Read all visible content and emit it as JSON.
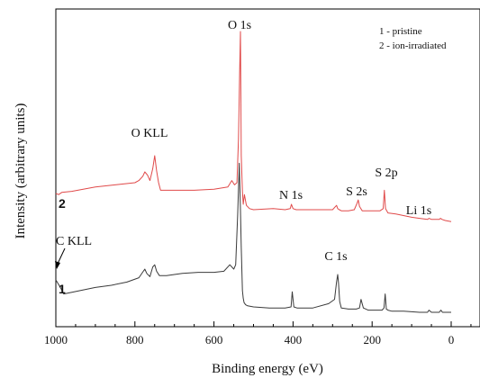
{
  "chart_data": {
    "type": "line",
    "title": "",
    "xlabel": "Binding energy (eV)",
    "ylabel": "Intensity (arbitrary units)",
    "x_reversed": true,
    "xlim": [
      1000,
      0
    ],
    "xticks": [
      1000,
      800,
      600,
      400,
      200,
      0
    ],
    "yticks_shown": false,
    "grid": false,
    "legend": {
      "placement": "top-right",
      "entries": [
        "1 - pristine",
        "2 - ion-irradiated"
      ]
    },
    "annotations": [
      "O 1s",
      "O KLL",
      "N 1s",
      "S 2s",
      "S 2p",
      "Li 1s",
      "C KLL",
      "C 1s"
    ],
    "series": [
      {
        "name": "1 - pristine",
        "curve_label": "1",
        "color": "#3a3a3a",
        "x": [
          1000,
          990,
          980,
          940,
          900,
          860,
          820,
          790,
          775,
          770,
          762,
          755,
          750,
          745,
          738,
          720,
          680,
          640,
          600,
          575,
          560,
          550,
          545,
          540,
          536,
          533,
          531,
          528,
          526,
          524,
          520,
          515,
          500,
          460,
          420,
          405,
          402,
          398,
          390,
          350,
          310,
          295,
          290,
          287,
          285,
          282,
          278,
          260,
          240,
          232,
          228,
          222,
          210,
          190,
          175,
          170,
          167,
          164,
          160,
          150,
          120,
          80,
          60,
          56,
          50,
          30,
          26,
          22,
          15,
          5,
          0
        ],
        "y": [
          0.3,
          0.24,
          0.17,
          0.2,
          0.23,
          0.25,
          0.28,
          0.32,
          0.4,
          0.36,
          0.33,
          0.42,
          0.44,
          0.38,
          0.34,
          0.34,
          0.36,
          0.37,
          0.37,
          0.38,
          0.44,
          0.4,
          0.44,
          0.9,
          1.38,
          0.95,
          0.6,
          0.2,
          0.13,
          0.09,
          0.07,
          0.06,
          0.05,
          0.04,
          0.04,
          0.05,
          0.19,
          0.05,
          0.04,
          0.04,
          0.08,
          0.12,
          0.28,
          0.35,
          0.27,
          0.1,
          0.04,
          0.03,
          0.03,
          0.04,
          0.12,
          0.04,
          0.02,
          0.02,
          0.02,
          0.04,
          0.17,
          0.03,
          0.02,
          0.01,
          0.01,
          0.0,
          0.0,
          0.02,
          0.0,
          0.0,
          0.02,
          0.0,
          0.0,
          0.0,
          0.0
        ]
      },
      {
        "name": "2 - ion-irradiated",
        "curve_label": "2",
        "color": "#e04a4a",
        "x": [
          1000,
          993,
          985,
          960,
          900,
          850,
          800,
          790,
          780,
          775,
          768,
          762,
          755,
          750,
          745,
          740,
          735,
          700,
          650,
          600,
          565,
          555,
          548,
          542,
          538,
          535,
          533,
          531,
          528,
          526,
          523,
          518,
          510,
          500,
          450,
          420,
          407,
          404,
          400,
          392,
          350,
          300,
          290,
          287,
          283,
          278,
          260,
          245,
          238,
          235,
          232,
          225,
          200,
          180,
          172,
          169,
          166,
          160,
          140,
          100,
          80,
          60,
          56,
          50,
          30,
          27,
          23,
          15,
          0
        ],
        "y": [
          1.1,
          1.09,
          1.11,
          1.12,
          1.16,
          1.18,
          1.2,
          1.22,
          1.26,
          1.3,
          1.27,
          1.22,
          1.33,
          1.45,
          1.31,
          1.2,
          1.13,
          1.13,
          1.13,
          1.14,
          1.16,
          1.22,
          1.18,
          1.2,
          1.6,
          2.22,
          2.6,
          1.45,
          1.12,
          1.0,
          1.09,
          0.99,
          0.96,
          0.95,
          0.96,
          0.95,
          0.96,
          1.0,
          0.96,
          0.95,
          0.95,
          0.95,
          0.99,
          0.96,
          0.95,
          0.94,
          0.94,
          0.95,
          1.01,
          1.04,
          0.98,
          0.94,
          0.94,
          0.94,
          0.96,
          1.13,
          0.96,
          0.92,
          0.91,
          0.88,
          0.87,
          0.86,
          0.87,
          0.86,
          0.86,
          0.87,
          0.86,
          0.85,
          0.84
        ]
      }
    ]
  }
}
